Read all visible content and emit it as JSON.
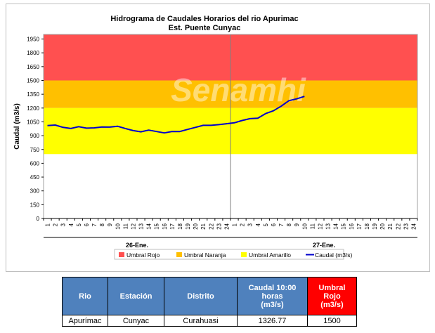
{
  "chart_data": {
    "type": "line",
    "title": "Hidrograma de Caudales Horarios del rio Apurimac",
    "subtitle": "Est. Puente Cunyac",
    "ylabel": "Caudal  (m3/s)",
    "ylim": [
      0,
      2000
    ],
    "yticks": [
      0,
      150,
      300,
      450,
      600,
      750,
      900,
      1050,
      1200,
      1350,
      1500,
      1650,
      1800,
      1950
    ],
    "x_ticks_day1": [
      "1",
      "2",
      "3",
      "4",
      "5",
      "6",
      "7",
      "8",
      "9",
      "10",
      "11",
      "12",
      "13",
      "14",
      "15",
      "16",
      "17",
      "18",
      "19",
      "20",
      "21",
      "22",
      "23",
      "24"
    ],
    "x_ticks_day2": [
      "1",
      "2",
      "3",
      "4",
      "5",
      "6",
      "7",
      "8",
      "9",
      "10",
      "11",
      "12",
      "13",
      "14",
      "15",
      "16",
      "17",
      "18",
      "19",
      "20",
      "21",
      "22",
      "23",
      "24"
    ],
    "day_labels": [
      "26-Ene.",
      "27-Ene."
    ],
    "bands": [
      {
        "name": "Umbral Rojo",
        "from": 1500,
        "to": 2000,
        "color": "#ff5050"
      },
      {
        "name": "Umbral Naranja",
        "from": 1200,
        "to": 1500,
        "color": "#ffc000"
      },
      {
        "name": "Umbral Amarillo",
        "from": 700,
        "to": 1200,
        "color": "#ffff00"
      }
    ],
    "series": [
      {
        "name": "Caudal (m3/s)",
        "color": "#0000cc",
        "values": [
          1010,
          1015,
          990,
          978,
          998,
          982,
          985,
          995,
          993,
          1002,
          978,
          955,
          942,
          960,
          945,
          930,
          945,
          945,
          968,
          990,
          1012,
          1012,
          1020,
          1030,
          1040,
          1065,
          1085,
          1090,
          1140,
          1170,
          1220,
          1280,
          1300,
          1326.77
        ]
      }
    ],
    "legend_position": "bottom"
  },
  "watermark": "Senamhi",
  "table": {
    "headers": {
      "rio": "Rio",
      "estacion": "Estación",
      "distrito": "Distrito",
      "caudal_line1": "Caudal 10:00",
      "caudal_line2": "horas",
      "caudal_line3": "(m3/s)",
      "umbral_line1": "Umbral",
      "umbral_line2": "Rojo",
      "umbral_line3": "(m3/s)"
    },
    "row": {
      "rio": "Apurímac",
      "estacion": "Cunyac",
      "distrito": "Curahuasi",
      "caudal": "1326.77",
      "umbral": "1500"
    }
  }
}
